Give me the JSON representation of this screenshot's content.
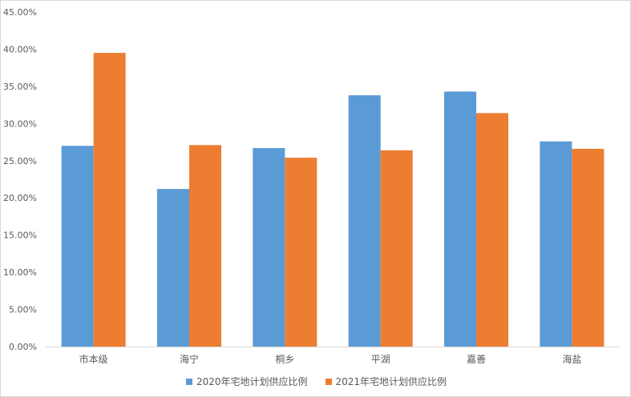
{
  "chart_data": {
    "type": "bar",
    "categories": [
      "市本级",
      "海宁",
      "桐乡",
      "平湖",
      "嘉善",
      "海盐"
    ],
    "series": [
      {
        "name": "2020年宅地计划供应比例",
        "color": "#5b9bd5",
        "values": [
          27.0,
          21.2,
          26.7,
          33.8,
          34.3,
          27.6
        ]
      },
      {
        "name": "2021年宅地计划供应比例",
        "color": "#ed7d31",
        "values": [
          39.5,
          27.1,
          25.4,
          26.4,
          31.4,
          26.6
        ]
      }
    ],
    "ylim": [
      0,
      45
    ],
    "yticks": [
      "0.00%",
      "5.00%",
      "10.00%",
      "15.00%",
      "20.00%",
      "25.00%",
      "30.00%",
      "35.00%",
      "40.00%",
      "45.00%"
    ],
    "ytick_values": [
      0,
      5,
      10,
      15,
      20,
      25,
      30,
      35,
      40,
      45
    ],
    "grid": false,
    "legend_position": "bottom",
    "title": "",
    "xlabel": "",
    "ylabel": ""
  }
}
